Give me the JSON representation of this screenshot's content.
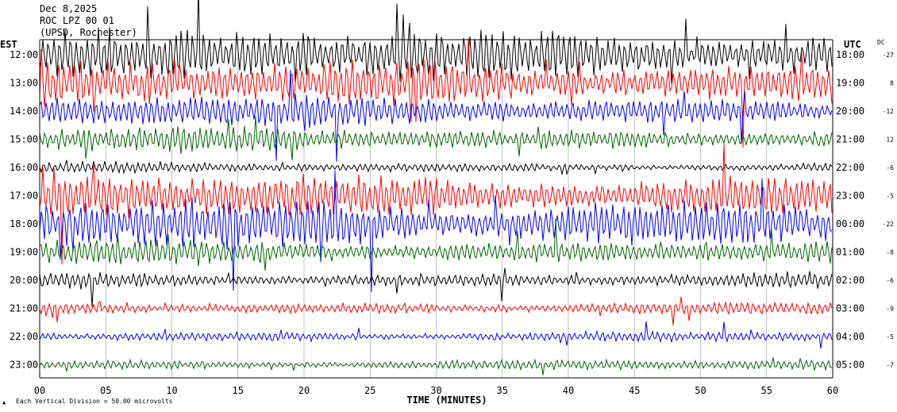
{
  "header": {
    "date": "Dec 8,2025",
    "station": "ROC LPZ 00 01",
    "location": "(UPSD, Rochester)"
  },
  "chart_data": {
    "type": "line",
    "title": "",
    "xlabel": "TIME (MINUTES)",
    "ylabel_left": "EST",
    "ylabel_right": "UTC",
    "dc_header": "DC",
    "xlim": [
      0,
      60
    ],
    "x_ticks": [
      "00",
      "05",
      "10",
      "15",
      "20",
      "25",
      "30",
      "35",
      "40",
      "45",
      "50",
      "55",
      "60"
    ],
    "rows": [
      {
        "est": "12:00",
        "utc": "18:00",
        "dc": "-27",
        "color": "#000000",
        "amplitude": 0.95
      },
      {
        "est": "13:00",
        "utc": "19:00",
        "dc": "8",
        "color": "#ff0000",
        "amplitude": 0.85
      },
      {
        "est": "14:00",
        "utc": "20:00",
        "dc": "-12",
        "color": "#0000ff",
        "amplitude": 0.6
      },
      {
        "est": "15:00",
        "utc": "21:00",
        "dc": "12",
        "color": "#006400",
        "amplitude": 0.45
      },
      {
        "est": "16:00",
        "utc": "22:00",
        "dc": "-6",
        "color": "#000000",
        "amplitude": 0.2
      },
      {
        "est": "17:00",
        "utc": "23:00",
        "dc": "-5",
        "color": "#ff0000",
        "amplitude": 0.9
      },
      {
        "est": "18:00",
        "utc": "00:00",
        "dc": "-22",
        "color": "#0000ff",
        "amplitude": 1.0
      },
      {
        "est": "19:00",
        "utc": "01:00",
        "dc": "-8",
        "color": "#006400",
        "amplitude": 0.5
      },
      {
        "est": "20:00",
        "utc": "02:00",
        "dc": "-6",
        "color": "#000000",
        "amplitude": 0.3
      },
      {
        "est": "21:00",
        "utc": "03:00",
        "dc": "-9",
        "color": "#ff0000",
        "amplitude": 0.25
      },
      {
        "est": "22:00",
        "utc": "04:00",
        "dc": "-5",
        "color": "#0000ff",
        "amplitude": 0.2
      },
      {
        "est": "23:00",
        "utc": "05:00",
        "dc": "-7",
        "color": "#006400",
        "amplitude": 0.2
      }
    ],
    "footnote": "Each Vertical Division =   50.00 microvolts",
    "grid_x": true
  }
}
